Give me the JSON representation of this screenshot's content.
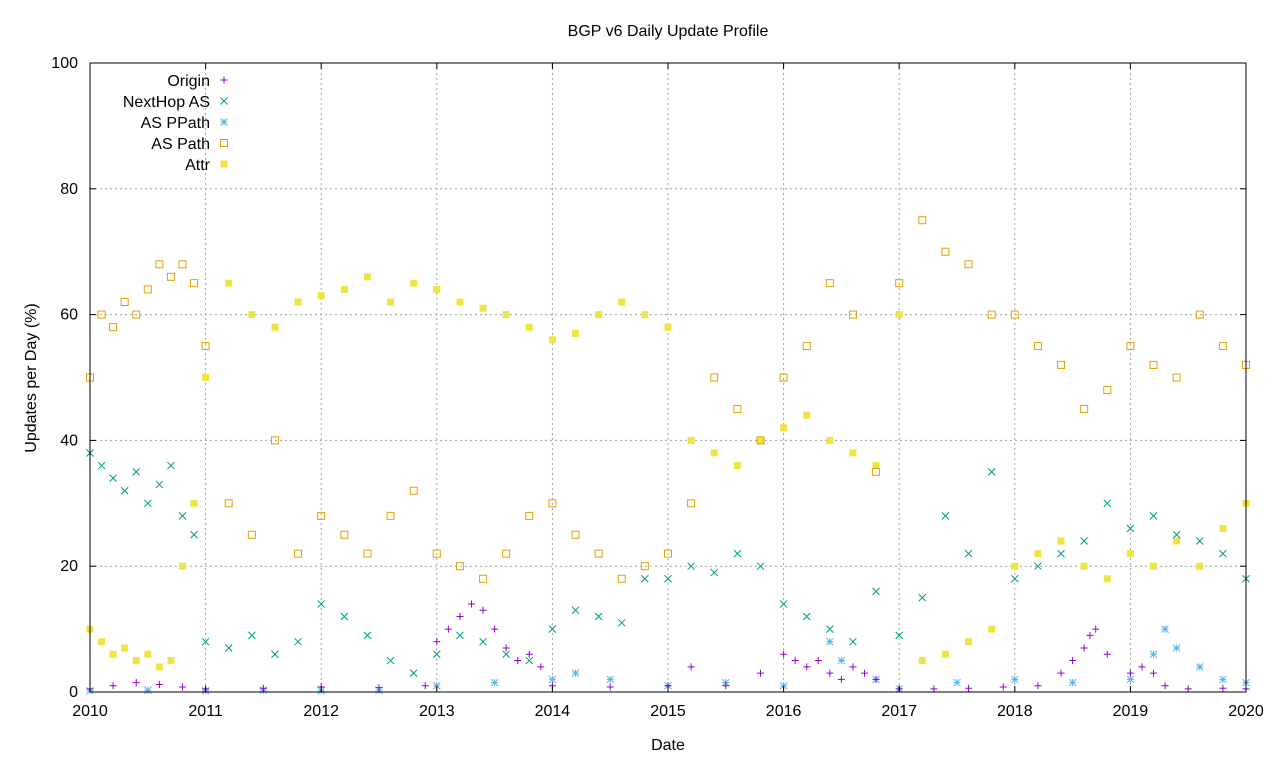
{
  "chart_data": {
    "type": "scatter",
    "title": "BGP v6 Daily Update Profile",
    "xlabel": "Date",
    "ylabel": "Updates per Day (%)",
    "xlim": [
      2010,
      2020
    ],
    "ylim": [
      0,
      100
    ],
    "x_ticks": [
      "2010",
      "2011",
      "2012",
      "2013",
      "2014",
      "2015",
      "2016",
      "2017",
      "2018",
      "2019",
      "2020"
    ],
    "y_ticks": [
      "0",
      "20",
      "40",
      "60",
      "80",
      "100"
    ],
    "grid": true,
    "legend_position": "top-left",
    "series": [
      {
        "name": "Origin",
        "marker": "plus",
        "color": "#9400d3",
        "points": [
          [
            2010.0,
            0.5
          ],
          [
            2010.2,
            1.0
          ],
          [
            2010.4,
            1.5
          ],
          [
            2010.6,
            1.2
          ],
          [
            2010.8,
            0.8
          ],
          [
            2011.0,
            0.5
          ],
          [
            2011.5,
            0.6
          ],
          [
            2012.0,
            0.8
          ],
          [
            2012.5,
            0.7
          ],
          [
            2012.9,
            1.0
          ],
          [
            2013.0,
            8.0
          ],
          [
            2013.1,
            10.0
          ],
          [
            2013.2,
            12.0
          ],
          [
            2013.3,
            14.0
          ],
          [
            2013.4,
            13.0
          ],
          [
            2013.5,
            10.0
          ],
          [
            2013.6,
            7.0
          ],
          [
            2013.7,
            5.0
          ],
          [
            2013.8,
            6.0
          ],
          [
            2013.9,
            4.0
          ],
          [
            2014.0,
            1.0
          ],
          [
            2014.5,
            0.8
          ],
          [
            2015.0,
            1.0
          ],
          [
            2015.2,
            4.0
          ],
          [
            2015.5,
            1.0
          ],
          [
            2015.8,
            3.0
          ],
          [
            2016.0,
            6.0
          ],
          [
            2016.1,
            5.0
          ],
          [
            2016.2,
            4.0
          ],
          [
            2016.3,
            5.0
          ],
          [
            2016.4,
            3.0
          ],
          [
            2016.5,
            2.0
          ],
          [
            2016.6,
            4.0
          ],
          [
            2016.7,
            3.0
          ],
          [
            2016.8,
            2.0
          ],
          [
            2017.0,
            0.5
          ],
          [
            2017.3,
            0.5
          ],
          [
            2017.6,
            0.6
          ],
          [
            2017.9,
            0.8
          ],
          [
            2018.2,
            1.0
          ],
          [
            2018.4,
            3.0
          ],
          [
            2018.5,
            5.0
          ],
          [
            2018.6,
            7.0
          ],
          [
            2018.65,
            9.0
          ],
          [
            2018.7,
            10.0
          ],
          [
            2018.8,
            6.0
          ],
          [
            2019.0,
            3.0
          ],
          [
            2019.1,
            4.0
          ],
          [
            2019.2,
            3.0
          ],
          [
            2019.3,
            1.0
          ],
          [
            2019.5,
            0.5
          ],
          [
            2019.8,
            0.6
          ],
          [
            2020.0,
            0.5
          ]
        ]
      },
      {
        "name": "NextHop AS",
        "marker": "cross",
        "color": "#009e73",
        "points": [
          [
            2010.0,
            38
          ],
          [
            2010.1,
            36
          ],
          [
            2010.2,
            34
          ],
          [
            2010.3,
            32
          ],
          [
            2010.4,
            35
          ],
          [
            2010.5,
            30
          ],
          [
            2010.6,
            33
          ],
          [
            2010.7,
            36
          ],
          [
            2010.8,
            28
          ],
          [
            2010.9,
            25
          ],
          [
            2011.0,
            8
          ],
          [
            2011.2,
            7
          ],
          [
            2011.4,
            9
          ],
          [
            2011.6,
            6
          ],
          [
            2011.8,
            8
          ],
          [
            2012.0,
            14
          ],
          [
            2012.2,
            12
          ],
          [
            2012.4,
            9
          ],
          [
            2012.6,
            5
          ],
          [
            2012.8,
            3
          ],
          [
            2013.0,
            6
          ],
          [
            2013.2,
            9
          ],
          [
            2013.4,
            8
          ],
          [
            2013.6,
            6
          ],
          [
            2013.8,
            5
          ],
          [
            2014.0,
            10
          ],
          [
            2014.2,
            13
          ],
          [
            2014.4,
            12
          ],
          [
            2014.6,
            11
          ],
          [
            2014.8,
            18
          ],
          [
            2015.0,
            18
          ],
          [
            2015.2,
            20
          ],
          [
            2015.4,
            19
          ],
          [
            2015.6,
            22
          ],
          [
            2015.8,
            20
          ],
          [
            2016.0,
            14
          ],
          [
            2016.2,
            12
          ],
          [
            2016.4,
            10
          ],
          [
            2016.6,
            8
          ],
          [
            2016.8,
            16
          ],
          [
            2017.0,
            9
          ],
          [
            2017.2,
            15
          ],
          [
            2017.4,
            28
          ],
          [
            2017.6,
            22
          ],
          [
            2017.8,
            35
          ],
          [
            2018.0,
            18
          ],
          [
            2018.2,
            20
          ],
          [
            2018.4,
            22
          ],
          [
            2018.6,
            24
          ],
          [
            2018.8,
            30
          ],
          [
            2019.0,
            26
          ],
          [
            2019.2,
            28
          ],
          [
            2019.4,
            25
          ],
          [
            2019.6,
            24
          ],
          [
            2019.8,
            22
          ],
          [
            2020.0,
            18
          ]
        ]
      },
      {
        "name": "AS PPath",
        "marker": "star",
        "color": "#56b4e9",
        "points": [
          [
            2010.0,
            0.2
          ],
          [
            2010.5,
            0.3
          ],
          [
            2011.0,
            0.2
          ],
          [
            2011.5,
            0.3
          ],
          [
            2012.0,
            0.2
          ],
          [
            2012.5,
            0.3
          ],
          [
            2013.0,
            1.0
          ],
          [
            2013.5,
            1.5
          ],
          [
            2014.0,
            2.0
          ],
          [
            2014.2,
            3.0
          ],
          [
            2014.5,
            2.0
          ],
          [
            2015.0,
            1.0
          ],
          [
            2015.5,
            1.5
          ],
          [
            2016.0,
            1.0
          ],
          [
            2016.4,
            8.0
          ],
          [
            2016.5,
            5.0
          ],
          [
            2016.8,
            2.0
          ],
          [
            2017.0,
            0.5
          ],
          [
            2017.5,
            1.5
          ],
          [
            2018.0,
            2.0
          ],
          [
            2018.5,
            1.5
          ],
          [
            2019.0,
            2.0
          ],
          [
            2019.2,
            6.0
          ],
          [
            2019.3,
            10.0
          ],
          [
            2019.4,
            7.0
          ],
          [
            2019.6,
            4.0
          ],
          [
            2019.8,
            2.0
          ],
          [
            2020.0,
            1.5
          ]
        ]
      },
      {
        "name": "AS Path",
        "marker": "open-square",
        "color": "#e69f00",
        "points": [
          [
            2010.0,
            50
          ],
          [
            2010.1,
            60
          ],
          [
            2010.2,
            58
          ],
          [
            2010.3,
            62
          ],
          [
            2010.4,
            60
          ],
          [
            2010.5,
            64
          ],
          [
            2010.6,
            68
          ],
          [
            2010.7,
            66
          ],
          [
            2010.8,
            68
          ],
          [
            2010.9,
            65
          ],
          [
            2011.0,
            55
          ],
          [
            2011.2,
            30
          ],
          [
            2011.4,
            25
          ],
          [
            2011.6,
            40
          ],
          [
            2011.8,
            22
          ],
          [
            2012.0,
            28
          ],
          [
            2012.2,
            25
          ],
          [
            2012.4,
            22
          ],
          [
            2012.6,
            28
          ],
          [
            2012.8,
            32
          ],
          [
            2013.0,
            22
          ],
          [
            2013.2,
            20
          ],
          [
            2013.4,
            18
          ],
          [
            2013.6,
            22
          ],
          [
            2013.8,
            28
          ],
          [
            2014.0,
            30
          ],
          [
            2014.2,
            25
          ],
          [
            2014.4,
            22
          ],
          [
            2014.6,
            18
          ],
          [
            2014.8,
            20
          ],
          [
            2015.0,
            22
          ],
          [
            2015.2,
            30
          ],
          [
            2015.4,
            50
          ],
          [
            2015.6,
            45
          ],
          [
            2015.8,
            40
          ],
          [
            2016.0,
            50
          ],
          [
            2016.2,
            55
          ],
          [
            2016.4,
            65
          ],
          [
            2016.6,
            60
          ],
          [
            2016.8,
            35
          ],
          [
            2017.0,
            65
          ],
          [
            2017.2,
            75
          ],
          [
            2017.4,
            70
          ],
          [
            2017.6,
            68
          ],
          [
            2017.8,
            60
          ],
          [
            2018.0,
            60
          ],
          [
            2018.2,
            55
          ],
          [
            2018.4,
            52
          ],
          [
            2018.6,
            45
          ],
          [
            2018.8,
            48
          ],
          [
            2019.0,
            55
          ],
          [
            2019.2,
            52
          ],
          [
            2019.4,
            50
          ],
          [
            2019.6,
            60
          ],
          [
            2019.8,
            55
          ],
          [
            2020.0,
            52
          ]
        ]
      },
      {
        "name": "Attr",
        "marker": "filled-square",
        "color": "#f0e442",
        "points": [
          [
            2010.0,
            10
          ],
          [
            2010.1,
            8
          ],
          [
            2010.2,
            6
          ],
          [
            2010.3,
            7
          ],
          [
            2010.4,
            5
          ],
          [
            2010.5,
            6
          ],
          [
            2010.6,
            4
          ],
          [
            2010.7,
            5
          ],
          [
            2010.8,
            20
          ],
          [
            2010.9,
            30
          ],
          [
            2011.0,
            50
          ],
          [
            2011.2,
            65
          ],
          [
            2011.4,
            60
          ],
          [
            2011.6,
            58
          ],
          [
            2011.8,
            62
          ],
          [
            2012.0,
            63
          ],
          [
            2012.2,
            64
          ],
          [
            2012.4,
            66
          ],
          [
            2012.6,
            62
          ],
          [
            2012.8,
            65
          ],
          [
            2013.0,
            64
          ],
          [
            2013.2,
            62
          ],
          [
            2013.4,
            61
          ],
          [
            2013.6,
            60
          ],
          [
            2013.8,
            58
          ],
          [
            2014.0,
            56
          ],
          [
            2014.2,
            57
          ],
          [
            2014.4,
            60
          ],
          [
            2014.6,
            62
          ],
          [
            2014.8,
            60
          ],
          [
            2015.0,
            58
          ],
          [
            2015.2,
            40
          ],
          [
            2015.4,
            38
          ],
          [
            2015.6,
            36
          ],
          [
            2015.8,
            40
          ],
          [
            2016.0,
            42
          ],
          [
            2016.2,
            44
          ],
          [
            2016.4,
            40
          ],
          [
            2016.6,
            38
          ],
          [
            2016.8,
            36
          ],
          [
            2017.0,
            60
          ],
          [
            2017.2,
            5
          ],
          [
            2017.4,
            6
          ],
          [
            2017.6,
            8
          ],
          [
            2017.8,
            10
          ],
          [
            2018.0,
            20
          ],
          [
            2018.2,
            22
          ],
          [
            2018.4,
            24
          ],
          [
            2018.6,
            20
          ],
          [
            2018.8,
            18
          ],
          [
            2019.0,
            22
          ],
          [
            2019.2,
            20
          ],
          [
            2019.4,
            24
          ],
          [
            2019.6,
            20
          ],
          [
            2019.8,
            26
          ],
          [
            2020.0,
            30
          ]
        ]
      }
    ]
  }
}
